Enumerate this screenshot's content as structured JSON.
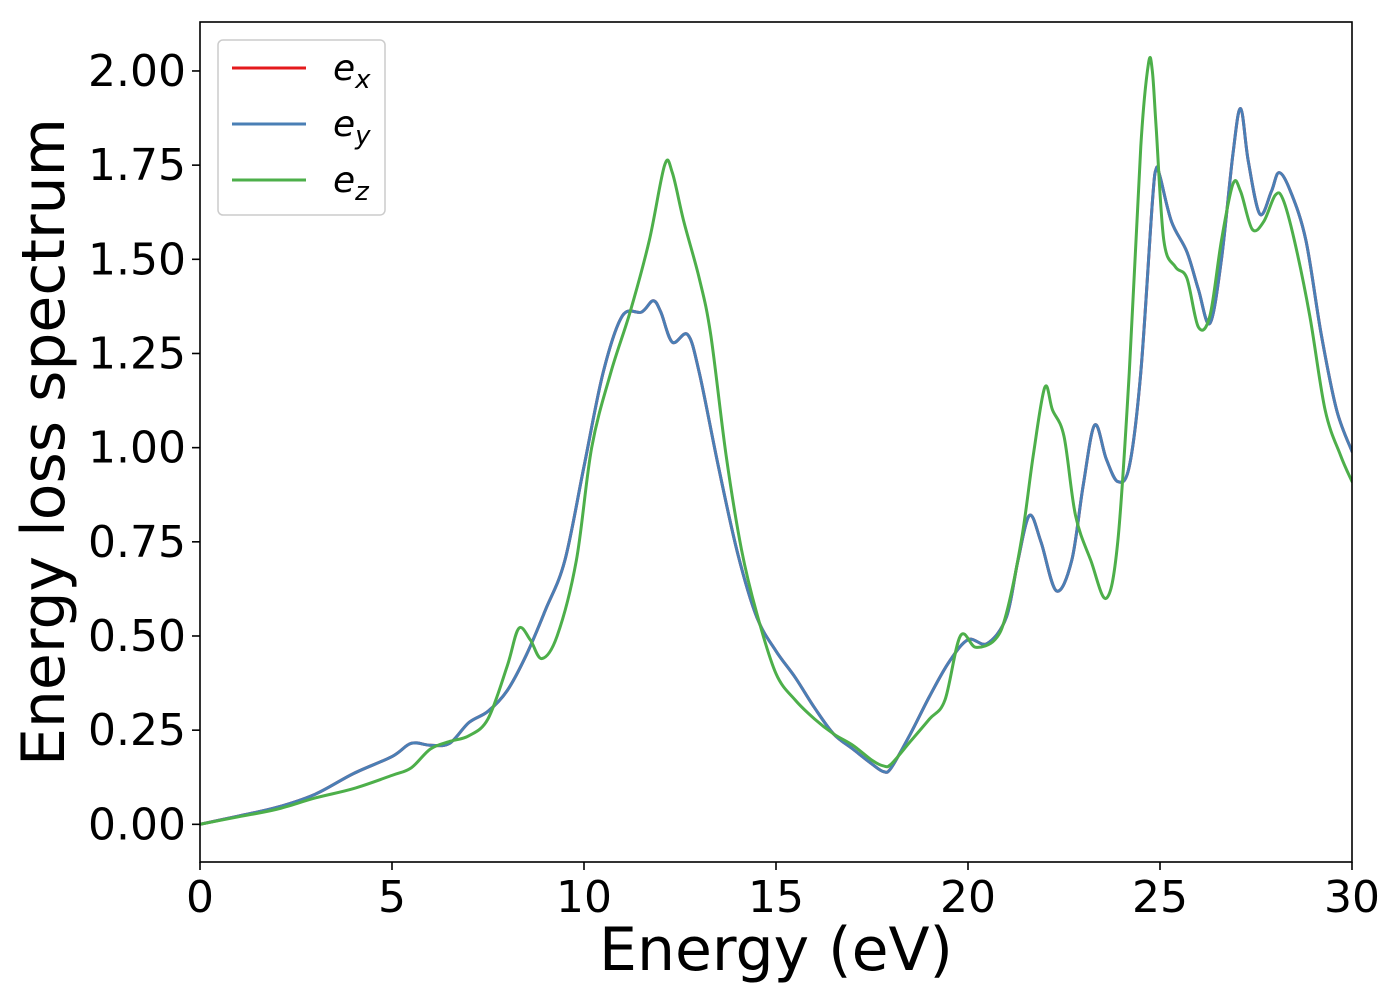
{
  "chart_data": {
    "type": "line",
    "xlabel": "Energy (eV)",
    "ylabel": "Energy loss spectrum",
    "xlim": [
      0,
      30
    ],
    "ylim": [
      -0.1,
      2.13
    ],
    "xticks": [
      0,
      5,
      10,
      15,
      20,
      25,
      30
    ],
    "xtick_labels": [
      "0",
      "5",
      "10",
      "15",
      "20",
      "25",
      "30"
    ],
    "yticks": [
      0,
      0.25,
      0.5,
      0.75,
      1.0,
      1.25,
      1.5,
      1.75,
      2.0
    ],
    "ytick_labels": [
      "0.00",
      "0.25",
      "0.50",
      "0.75",
      "1.00",
      "1.25",
      "1.50",
      "1.75",
      "2.00"
    ],
    "grid": false,
    "legend_position": "top-left",
    "series": [
      {
        "name": "e",
        "sub": "x",
        "color": "#e41a1c",
        "x": [
          0,
          1,
          2,
          3,
          4,
          5,
          5.5,
          6,
          6.5,
          7,
          7.5,
          8,
          8.5,
          9,
          9.5,
          10,
          10.5,
          11,
          11.5,
          11.8,
          12,
          12.3,
          12.7,
          13,
          13.5,
          14,
          14.5,
          15,
          15.5,
          16,
          16.5,
          17,
          17.5,
          17.8,
          18,
          18.5,
          19,
          19.5,
          20,
          20.5,
          21,
          21.3,
          21.6,
          21.9,
          22.3,
          22.7,
          23,
          23.3,
          23.6,
          23.9,
          24.2,
          24.5,
          24.8,
          24.9,
          25,
          25.3,
          25.7,
          26,
          26.3,
          26.6,
          26.9,
          27.1,
          27.3,
          27.6,
          27.9,
          28.1,
          28.4,
          28.8,
          29.2,
          29.6,
          30
        ],
        "y": [
          0,
          0.022,
          0.045,
          0.08,
          0.135,
          0.18,
          0.215,
          0.21,
          0.215,
          0.27,
          0.3,
          0.355,
          0.45,
          0.57,
          0.7,
          0.95,
          1.2,
          1.35,
          1.36,
          1.39,
          1.36,
          1.28,
          1.3,
          1.2,
          0.95,
          0.72,
          0.55,
          0.46,
          0.39,
          0.31,
          0.24,
          0.2,
          0.16,
          0.14,
          0.15,
          0.24,
          0.34,
          0.43,
          0.49,
          0.48,
          0.55,
          0.7,
          0.82,
          0.75,
          0.62,
          0.7,
          0.9,
          1.06,
          0.97,
          0.91,
          0.95,
          1.2,
          1.65,
          1.74,
          1.72,
          1.6,
          1.52,
          1.42,
          1.33,
          1.5,
          1.78,
          1.9,
          1.76,
          1.62,
          1.68,
          1.73,
          1.68,
          1.55,
          1.3,
          1.1,
          0.99
        ]
      },
      {
        "name": "e",
        "sub": "y",
        "color": "#4a7fb5",
        "x": [
          0,
          1,
          2,
          3,
          4,
          5,
          5.5,
          6,
          6.5,
          7,
          7.5,
          8,
          8.5,
          9,
          9.5,
          10,
          10.5,
          11,
          11.5,
          11.8,
          12,
          12.3,
          12.7,
          13,
          13.5,
          14,
          14.5,
          15,
          15.5,
          16,
          16.5,
          17,
          17.5,
          17.8,
          18,
          18.5,
          19,
          19.5,
          20,
          20.5,
          21,
          21.3,
          21.6,
          21.9,
          22.3,
          22.7,
          23,
          23.3,
          23.6,
          23.9,
          24.2,
          24.5,
          24.8,
          24.9,
          25,
          25.3,
          25.7,
          26,
          26.3,
          26.6,
          26.9,
          27.1,
          27.3,
          27.6,
          27.9,
          28.1,
          28.4,
          28.8,
          29.2,
          29.6,
          30
        ],
        "y": [
          0,
          0.022,
          0.045,
          0.08,
          0.135,
          0.18,
          0.215,
          0.21,
          0.215,
          0.27,
          0.3,
          0.355,
          0.45,
          0.57,
          0.7,
          0.95,
          1.2,
          1.35,
          1.36,
          1.39,
          1.36,
          1.28,
          1.3,
          1.2,
          0.95,
          0.72,
          0.55,
          0.46,
          0.39,
          0.31,
          0.24,
          0.2,
          0.16,
          0.14,
          0.15,
          0.24,
          0.34,
          0.43,
          0.49,
          0.48,
          0.55,
          0.7,
          0.82,
          0.75,
          0.62,
          0.7,
          0.9,
          1.06,
          0.97,
          0.91,
          0.95,
          1.2,
          1.65,
          1.74,
          1.72,
          1.6,
          1.52,
          1.42,
          1.33,
          1.5,
          1.78,
          1.9,
          1.76,
          1.62,
          1.68,
          1.73,
          1.68,
          1.55,
          1.3,
          1.1,
          0.99
        ]
      },
      {
        "name": "e",
        "sub": "z",
        "color": "#4daf4a",
        "x": [
          0,
          1,
          2,
          3,
          4,
          5,
          5.5,
          6,
          6.5,
          7,
          7.5,
          8,
          8.3,
          8.6,
          8.9,
          9.3,
          9.8,
          10.2,
          10.7,
          11.2,
          11.7,
          12.1,
          12.3,
          12.6,
          13,
          13.3,
          13.7,
          14.1,
          14.5,
          15,
          15.5,
          16,
          16.5,
          17,
          17.5,
          17.8,
          18,
          18.5,
          19,
          19.4,
          19.8,
          20.2,
          20.7,
          21,
          21.4,
          21.7,
          22,
          22.2,
          22.5,
          22.8,
          23.2,
          23.6,
          23.9,
          24.2,
          24.5,
          24.7,
          24.8,
          24.9,
          25.1,
          25.4,
          25.7,
          26,
          26.3,
          26.6,
          26.9,
          27.1,
          27.4,
          27.7,
          28,
          28.2,
          28.5,
          28.9,
          29.3,
          29.7,
          30
        ],
        "y": [
          0,
          0.02,
          0.04,
          0.07,
          0.095,
          0.13,
          0.15,
          0.2,
          0.22,
          0.235,
          0.28,
          0.42,
          0.52,
          0.49,
          0.44,
          0.5,
          0.7,
          1.0,
          1.2,
          1.36,
          1.55,
          1.75,
          1.73,
          1.6,
          1.45,
          1.3,
          0.98,
          0.73,
          0.56,
          0.4,
          0.33,
          0.28,
          0.24,
          0.21,
          0.17,
          0.155,
          0.16,
          0.22,
          0.28,
          0.33,
          0.5,
          0.47,
          0.49,
          0.56,
          0.76,
          0.98,
          1.16,
          1.1,
          1.03,
          0.82,
          0.7,
          0.6,
          0.75,
          1.2,
          1.8,
          2.02,
          2.0,
          1.85,
          1.55,
          1.48,
          1.45,
          1.32,
          1.35,
          1.55,
          1.7,
          1.68,
          1.58,
          1.6,
          1.67,
          1.66,
          1.55,
          1.35,
          1.1,
          0.98,
          0.91
        ]
      }
    ]
  }
}
